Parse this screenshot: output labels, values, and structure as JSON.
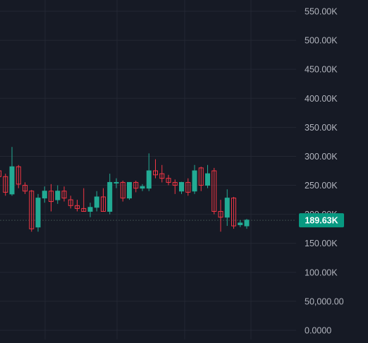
{
  "colors": {
    "background": "#161a25",
    "grid": "#232733",
    "axis_text": "#b2b5be",
    "up": "#22ab94",
    "down": "#f23645",
    "price_label_bg": "#089981",
    "price_label_text": "#ffffff",
    "price_line": "#3b4a4a"
  },
  "chart_data": {
    "type": "candlestick",
    "grid": true,
    "y_axis_position": "right",
    "ylim": [
      0,
      570000
    ],
    "y_ticks": [
      {
        "value": 550000,
        "label": "550.00K"
      },
      {
        "value": 500000,
        "label": "500.00K"
      },
      {
        "value": 450000,
        "label": "450.00K"
      },
      {
        "value": 400000,
        "label": "400.00K"
      },
      {
        "value": 350000,
        "label": "350.00K"
      },
      {
        "value": 300000,
        "label": "300.00K"
      },
      {
        "value": 250000,
        "label": "250.00K"
      },
      {
        "value": 200000,
        "label": "200.00K"
      },
      {
        "value": 150000,
        "label": "150.00K"
      },
      {
        "value": 100000,
        "label": "100.00K"
      },
      {
        "value": 50000,
        "label": "50,000.00"
      },
      {
        "value": 0,
        "label": "0.0000"
      }
    ],
    "last_price": {
      "value": 189630,
      "label": "189.63K"
    },
    "candles": [
      {
        "o": 275000,
        "h": 280000,
        "l": 240000,
        "c": 265000
      },
      {
        "o": 265000,
        "h": 270000,
        "l": 232000,
        "c": 238000
      },
      {
        "o": 235000,
        "h": 316000,
        "l": 232000,
        "c": 282000
      },
      {
        "o": 282000,
        "h": 285000,
        "l": 245000,
        "c": 252000
      },
      {
        "o": 250000,
        "h": 255000,
        "l": 235000,
        "c": 240000
      },
      {
        "o": 240000,
        "h": 242000,
        "l": 170000,
        "c": 175000
      },
      {
        "o": 178000,
        "h": 235000,
        "l": 170000,
        "c": 228000
      },
      {
        "o": 228000,
        "h": 248000,
        "l": 220000,
        "c": 240000
      },
      {
        "o": 240000,
        "h": 252000,
        "l": 205000,
        "c": 222000
      },
      {
        "o": 225000,
        "h": 250000,
        "l": 218000,
        "c": 240000
      },
      {
        "o": 240000,
        "h": 248000,
        "l": 222000,
        "c": 228000
      },
      {
        "o": 225000,
        "h": 232000,
        "l": 210000,
        "c": 215000
      },
      {
        "o": 215000,
        "h": 225000,
        "l": 205000,
        "c": 210000
      },
      {
        "o": 210000,
        "h": 245000,
        "l": 205000,
        "c": 205000
      },
      {
        "o": 205000,
        "h": 220000,
        "l": 195000,
        "c": 212000
      },
      {
        "o": 212000,
        "h": 240000,
        "l": 205000,
        "c": 230000
      },
      {
        "o": 230000,
        "h": 245000,
        "l": 205000,
        "c": 205000
      },
      {
        "o": 205000,
        "h": 270000,
        "l": 200000,
        "c": 255000
      },
      {
        "o": 255000,
        "h": 262000,
        "l": 245000,
        "c": 255000
      },
      {
        "o": 255000,
        "h": 258000,
        "l": 222000,
        "c": 228000
      },
      {
        "o": 228000,
        "h": 255000,
        "l": 225000,
        "c": 255000
      },
      {
        "o": 255000,
        "h": 258000,
        "l": 238000,
        "c": 245000
      },
      {
        "o": 245000,
        "h": 252000,
        "l": 240000,
        "c": 248000
      },
      {
        "o": 245000,
        "h": 305000,
        "l": 240000,
        "c": 275000
      },
      {
        "o": 275000,
        "h": 295000,
        "l": 262000,
        "c": 268000
      },
      {
        "o": 270000,
        "h": 285000,
        "l": 255000,
        "c": 262000
      },
      {
        "o": 262000,
        "h": 268000,
        "l": 250000,
        "c": 255000
      },
      {
        "o": 255000,
        "h": 260000,
        "l": 235000,
        "c": 250000
      },
      {
        "o": 240000,
        "h": 256000,
        "l": 235000,
        "c": 255000
      },
      {
        "o": 255000,
        "h": 262000,
        "l": 232000,
        "c": 238000
      },
      {
        "o": 240000,
        "h": 285000,
        "l": 235000,
        "c": 275000
      },
      {
        "o": 280000,
        "h": 282000,
        "l": 240000,
        "c": 250000
      },
      {
        "o": 250000,
        "h": 285000,
        "l": 245000,
        "c": 270000
      },
      {
        "o": 275000,
        "h": 280000,
        "l": 200000,
        "c": 205000
      },
      {
        "o": 205000,
        "h": 225000,
        "l": 170000,
        "c": 195000
      },
      {
        "o": 195000,
        "h": 243000,
        "l": 180000,
        "c": 228000
      },
      {
        "o": 228000,
        "h": 230000,
        "l": 175000,
        "c": 180000
      },
      {
        "o": 182000,
        "h": 190000,
        "l": 178000,
        "c": 185000
      },
      {
        "o": 180000,
        "h": 192000,
        "l": 175000,
        "c": 190000
      }
    ]
  }
}
